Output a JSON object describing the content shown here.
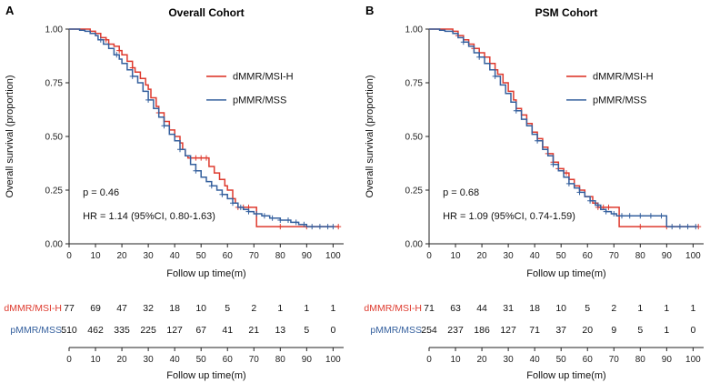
{
  "style": {
    "red": "#DE3A2E",
    "blue": "#35609E",
    "axis_color": "#222222",
    "text_color": "#111111"
  },
  "chart_data": [
    {
      "type": "line",
      "subtype": "kaplan-meier",
      "panel_label": "A",
      "title": "Overall Cohort",
      "xlabel": "Follow up time(m)",
      "ylabel": "Overall survival (proportion)",
      "xlim": [
        0,
        104
      ],
      "ylim": [
        0,
        1
      ],
      "xticks": [
        0,
        10,
        20,
        30,
        40,
        50,
        60,
        70,
        80,
        90,
        100
      ],
      "yticks": [
        {
          "v": 0.0,
          "label": "0.00"
        },
        {
          "v": 0.25,
          "label": "0.25"
        },
        {
          "v": 0.5,
          "label": "0.50"
        },
        {
          "v": 0.75,
          "label": "0.75"
        },
        {
          "v": 1.0,
          "label": "1.00"
        }
      ],
      "grid": false,
      "legend_position": "center-right",
      "annotations": [
        "p = 0.46",
        "HR = 1.14 (95%CI, 0.80-1.63)"
      ],
      "series": [
        {
          "name": "dMMR/MSI-H",
          "color": "#DE3A2E",
          "steps": [
            [
              0,
              1.0
            ],
            [
              8,
              0.99
            ],
            [
              10,
              0.98
            ],
            [
              12,
              0.96
            ],
            [
              14,
              0.95
            ],
            [
              15,
              0.93
            ],
            [
              17,
              0.92
            ],
            [
              19,
              0.9
            ],
            [
              20,
              0.88
            ],
            [
              22,
              0.85
            ],
            [
              24,
              0.82
            ],
            [
              25,
              0.8
            ],
            [
              27,
              0.77
            ],
            [
              29,
              0.74
            ],
            [
              30,
              0.72
            ],
            [
              31,
              0.68
            ],
            [
              33,
              0.64
            ],
            [
              34,
              0.61
            ],
            [
              36,
              0.57
            ],
            [
              38,
              0.53
            ],
            [
              40,
              0.5
            ],
            [
              42,
              0.47
            ],
            [
              43,
              0.44
            ],
            [
              44,
              0.41
            ],
            [
              45,
              0.4
            ],
            [
              53,
              0.36
            ],
            [
              55,
              0.33
            ],
            [
              57,
              0.3
            ],
            [
              59,
              0.27
            ],
            [
              60,
              0.25
            ],
            [
              62,
              0.21
            ],
            [
              63,
              0.19
            ],
            [
              64,
              0.17
            ],
            [
              71,
              0.08
            ],
            [
              102,
              0.08
            ]
          ],
          "censor_times": [
            10,
            14,
            19,
            24,
            34,
            46,
            48,
            50,
            52,
            64,
            66,
            68,
            80,
            90,
            102
          ]
        },
        {
          "name": "pMMR/MSS",
          "color": "#35609E",
          "steps": [
            [
              0,
              1.0
            ],
            [
              4,
              0.995
            ],
            [
              6,
              0.99
            ],
            [
              8,
              0.98
            ],
            [
              10,
              0.97
            ],
            [
              11,
              0.95
            ],
            [
              13,
              0.93
            ],
            [
              15,
              0.91
            ],
            [
              17,
              0.88
            ],
            [
              19,
              0.86
            ],
            [
              20,
              0.84
            ],
            [
              22,
              0.81
            ],
            [
              24,
              0.78
            ],
            [
              26,
              0.75
            ],
            [
              28,
              0.71
            ],
            [
              30,
              0.67
            ],
            [
              32,
              0.63
            ],
            [
              34,
              0.59
            ],
            [
              36,
              0.55
            ],
            [
              38,
              0.51
            ],
            [
              40,
              0.48
            ],
            [
              42,
              0.44
            ],
            [
              44,
              0.41
            ],
            [
              46,
              0.37
            ],
            [
              48,
              0.34
            ],
            [
              50,
              0.31
            ],
            [
              52,
              0.29
            ],
            [
              54,
              0.27
            ],
            [
              56,
              0.25
            ],
            [
              58,
              0.23
            ],
            [
              60,
              0.21
            ],
            [
              62,
              0.19
            ],
            [
              64,
              0.17
            ],
            [
              66,
              0.16
            ],
            [
              68,
              0.15
            ],
            [
              70,
              0.14
            ],
            [
              73,
              0.13
            ],
            [
              76,
              0.12
            ],
            [
              80,
              0.11
            ],
            [
              84,
              0.1
            ],
            [
              87,
              0.09
            ],
            [
              90,
              0.08
            ],
            [
              100,
              0.08
            ]
          ],
          "censor_times": [
            12,
            18,
            24,
            30,
            36,
            42,
            48,
            54,
            58,
            62,
            65,
            68,
            71,
            74,
            77,
            80,
            83,
            86,
            89,
            92,
            95,
            98,
            100
          ]
        }
      ],
      "risk_table": {
        "xlabel": "Follow up time(m)",
        "times": [
          0,
          10,
          20,
          30,
          40,
          50,
          60,
          70,
          80,
          90,
          100
        ],
        "rows": [
          {
            "name": "dMMR/MSI-H",
            "color": "#DE3A2E",
            "counts": [
              77,
              69,
              47,
              32,
              18,
              10,
              5,
              2,
              1,
              1,
              1
            ]
          },
          {
            "name": "pMMR/MSS",
            "color": "#35609E",
            "counts": [
              510,
              462,
              335,
              225,
              127,
              67,
              41,
              21,
              13,
              5,
              0
            ]
          }
        ]
      }
    },
    {
      "type": "line",
      "subtype": "kaplan-meier",
      "panel_label": "B",
      "title": "PSM Cohort",
      "xlabel": "Follow up time(m)",
      "ylabel": "Overall survival (proportion)",
      "xlim": [
        0,
        104
      ],
      "ylim": [
        0,
        1
      ],
      "xticks": [
        0,
        10,
        20,
        30,
        40,
        50,
        60,
        70,
        80,
        90,
        100
      ],
      "yticks": [
        {
          "v": 0.0,
          "label": "0.00"
        },
        {
          "v": 0.25,
          "label": "0.25"
        },
        {
          "v": 0.5,
          "label": "0.50"
        },
        {
          "v": 0.75,
          "label": "0.75"
        },
        {
          "v": 1.0,
          "label": "1.00"
        }
      ],
      "grid": false,
      "legend_position": "center-right",
      "annotations": [
        "p = 0.68",
        "HR = 1.09 (95%CI, 0.74-1.59)"
      ],
      "series": [
        {
          "name": "dMMR/MSI-H",
          "color": "#DE3A2E",
          "steps": [
            [
              0,
              1.0
            ],
            [
              9,
              0.99
            ],
            [
              11,
              0.97
            ],
            [
              13,
              0.95
            ],
            [
              15,
              0.93
            ],
            [
              17,
              0.91
            ],
            [
              19,
              0.89
            ],
            [
              21,
              0.87
            ],
            [
              23,
              0.84
            ],
            [
              25,
              0.81
            ],
            [
              26,
              0.79
            ],
            [
              28,
              0.75
            ],
            [
              30,
              0.71
            ],
            [
              32,
              0.67
            ],
            [
              33,
              0.63
            ],
            [
              35,
              0.6
            ],
            [
              37,
              0.56
            ],
            [
              39,
              0.52
            ],
            [
              41,
              0.49
            ],
            [
              43,
              0.45
            ],
            [
              45,
              0.42
            ],
            [
              47,
              0.38
            ],
            [
              49,
              0.35
            ],
            [
              51,
              0.33
            ],
            [
              53,
              0.3
            ],
            [
              55,
              0.27
            ],
            [
              57,
              0.25
            ],
            [
              59,
              0.22
            ],
            [
              62,
              0.19
            ],
            [
              64,
              0.17
            ],
            [
              72,
              0.08
            ],
            [
              102,
              0.08
            ]
          ],
          "censor_times": [
            11,
            17,
            23,
            45,
            47,
            49,
            52,
            64,
            66,
            68,
            80,
            90,
            102
          ]
        },
        {
          "name": "pMMR/MSS",
          "color": "#35609E",
          "steps": [
            [
              0,
              1.0
            ],
            [
              4,
              0.995
            ],
            [
              6,
              0.99
            ],
            [
              9,
              0.98
            ],
            [
              11,
              0.96
            ],
            [
              13,
              0.94
            ],
            [
              15,
              0.92
            ],
            [
              17,
              0.89
            ],
            [
              19,
              0.87
            ],
            [
              21,
              0.84
            ],
            [
              23,
              0.81
            ],
            [
              25,
              0.78
            ],
            [
              27,
              0.74
            ],
            [
              29,
              0.7
            ],
            [
              31,
              0.66
            ],
            [
              33,
              0.62
            ],
            [
              35,
              0.58
            ],
            [
              37,
              0.55
            ],
            [
              39,
              0.51
            ],
            [
              41,
              0.48
            ],
            [
              43,
              0.44
            ],
            [
              45,
              0.41
            ],
            [
              47,
              0.37
            ],
            [
              49,
              0.34
            ],
            [
              51,
              0.31
            ],
            [
              53,
              0.28
            ],
            [
              55,
              0.26
            ],
            [
              57,
              0.24
            ],
            [
              59,
              0.22
            ],
            [
              61,
              0.2
            ],
            [
              63,
              0.18
            ],
            [
              65,
              0.16
            ],
            [
              67,
              0.15
            ],
            [
              69,
              0.14
            ],
            [
              71,
              0.13
            ],
            [
              90,
              0.08
            ],
            [
              101,
              0.08
            ]
          ],
          "censor_times": [
            13,
            19,
            25,
            33,
            41,
            47,
            53,
            57,
            61,
            64,
            67,
            70,
            73,
            76,
            80,
            84,
            88,
            92,
            95,
            98,
            101
          ]
        }
      ],
      "risk_table": {
        "xlabel": "Follow up time(m)",
        "times": [
          0,
          10,
          20,
          30,
          40,
          50,
          60,
          70,
          80,
          90,
          100
        ],
        "rows": [
          {
            "name": "dMMR/MSI-H",
            "color": "#DE3A2E",
            "counts": [
              71,
              63,
              44,
              31,
              18,
              10,
              5,
              2,
              1,
              1,
              1
            ]
          },
          {
            "name": "pMMR/MSS",
            "color": "#35609E",
            "counts": [
              254,
              237,
              186,
              127,
              71,
              37,
              20,
              9,
              5,
              1,
              0
            ]
          }
        ]
      }
    }
  ]
}
